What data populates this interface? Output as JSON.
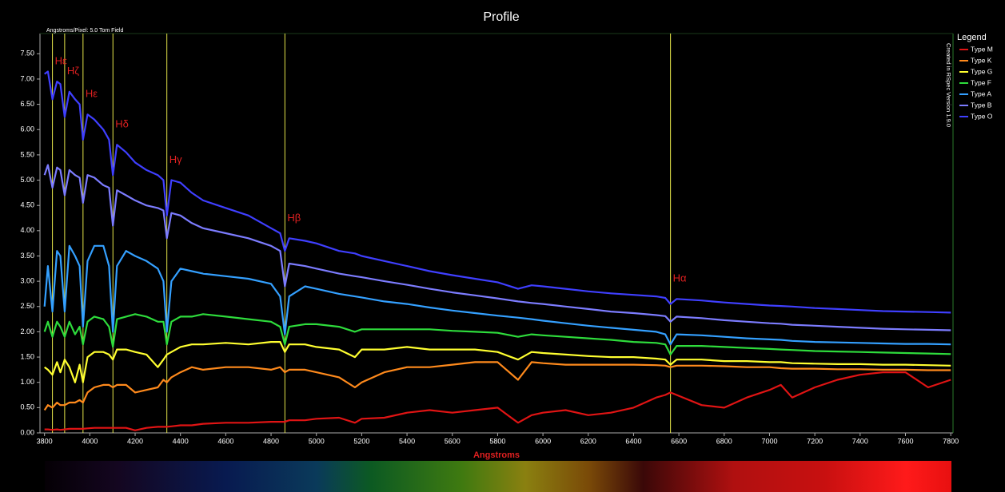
{
  "chart_data": {
    "type": "line",
    "title": "Profile",
    "subtitle": "Angstroms/Pixel: 5.0 Tom Field",
    "side_note": "Created in RSpec Version 1.9.0",
    "x_label": "Angstroms",
    "legend_title": "Legend",
    "legend": "right",
    "grid": false,
    "xlim": [
      3780,
      7810
    ],
    "ylim": [
      0,
      7.9
    ],
    "xticks": [
      3800,
      4000,
      4200,
      4400,
      4600,
      4800,
      5000,
      5200,
      5400,
      5600,
      5800,
      6000,
      6200,
      6400,
      6600,
      6800,
      7000,
      7200,
      7400,
      7600,
      7800
    ],
    "yticks": [
      {
        "value": 0,
        "label": "0.00"
      },
      {
        "value": 0.5,
        "label": "0.50"
      },
      {
        "value": 1,
        "label": "1.00"
      },
      {
        "value": 1.5,
        "label": "1.50"
      },
      {
        "value": 2,
        "label": "2.00"
      },
      {
        "value": 2.5,
        "label": "2.50"
      },
      {
        "value": 3,
        "label": "3.00"
      },
      {
        "value": 3.5,
        "label": "3.50"
      },
      {
        "value": 4,
        "label": "4.00"
      },
      {
        "value": 4.5,
        "label": "4.50"
      },
      {
        "value": 5,
        "label": "5.00"
      },
      {
        "value": 5.5,
        "label": "5.50"
      },
      {
        "value": 6,
        "label": "6.00"
      },
      {
        "value": 6.5,
        "label": "6.50"
      },
      {
        "value": 7,
        "label": "7.00"
      },
      {
        "value": 7.5,
        "label": "7.50"
      }
    ],
    "line_color": "#e6e64a",
    "label_color": "#e02020",
    "lines": [
      {
        "x": 3835,
        "label": "Hε"
      },
      {
        "x": 3889,
        "label": "Hζ"
      },
      {
        "x": 3970,
        "label": "Hε"
      },
      {
        "x": 4102,
        "label": "Hδ"
      },
      {
        "x": 4340,
        "label": "Hγ"
      },
      {
        "x": 4861,
        "label": "Hβ"
      },
      {
        "x": 6563,
        "label": "Hα"
      }
    ],
    "x": [
      3800,
      3815,
      3835,
      3855,
      3870,
      3889,
      3910,
      3935,
      3955,
      3970,
      3990,
      4020,
      4060,
      4085,
      4102,
      4120,
      4160,
      4200,
      4250,
      4300,
      4325,
      4340,
      4360,
      4400,
      4450,
      4500,
      4600,
      4700,
      4800,
      4840,
      4861,
      4880,
      4950,
      5000,
      5100,
      5170,
      5200,
      5300,
      5400,
      5500,
      5600,
      5700,
      5800,
      5890,
      5950,
      6000,
      6100,
      6200,
      6300,
      6400,
      6500,
      6540,
      6563,
      6590,
      6700,
      6800,
      6900,
      7000,
      7050,
      7100,
      7200,
      7300,
      7400,
      7500,
      7600,
      7700,
      7800
    ],
    "series": [
      {
        "name": "Type M",
        "color": "#e01414",
        "values": [
          0.07,
          0.07,
          0.06,
          0.07,
          0.06,
          0.07,
          0.08,
          0.08,
          0.08,
          0.08,
          0.09,
          0.1,
          0.1,
          0.1,
          0.1,
          0.1,
          0.1,
          0.05,
          0.1,
          0.12,
          0.12,
          0.12,
          0.13,
          0.15,
          0.15,
          0.18,
          0.2,
          0.2,
          0.22,
          0.22,
          0.22,
          0.25,
          0.25,
          0.28,
          0.3,
          0.2,
          0.28,
          0.3,
          0.4,
          0.45,
          0.4,
          0.45,
          0.5,
          0.2,
          0.35,
          0.4,
          0.45,
          0.35,
          0.4,
          0.5,
          0.7,
          0.75,
          0.8,
          0.75,
          0.55,
          0.5,
          0.7,
          0.85,
          0.95,
          0.7,
          0.9,
          1.05,
          1.15,
          1.2,
          1.2,
          0.9,
          1.05
        ]
      },
      {
        "name": "Type K",
        "color": "#ff8a1c",
        "values": [
          0.45,
          0.55,
          0.5,
          0.6,
          0.55,
          0.55,
          0.6,
          0.6,
          0.65,
          0.6,
          0.8,
          0.9,
          0.95,
          0.95,
          0.9,
          0.95,
          0.95,
          0.8,
          0.85,
          0.9,
          1.05,
          1.0,
          1.1,
          1.2,
          1.3,
          1.25,
          1.3,
          1.3,
          1.25,
          1.3,
          1.2,
          1.25,
          1.25,
          1.2,
          1.1,
          0.9,
          1.0,
          1.2,
          1.3,
          1.3,
          1.35,
          1.4,
          1.4,
          1.05,
          1.4,
          1.38,
          1.35,
          1.35,
          1.35,
          1.35,
          1.34,
          1.33,
          1.3,
          1.33,
          1.33,
          1.32,
          1.3,
          1.3,
          1.28,
          1.27,
          1.27,
          1.26,
          1.26,
          1.25,
          1.25,
          1.24,
          1.24
        ]
      },
      {
        "name": "Type G",
        "color": "#ffff30",
        "values": [
          1.3,
          1.25,
          1.15,
          1.4,
          1.2,
          1.45,
          1.3,
          1.0,
          1.35,
          1.0,
          1.5,
          1.6,
          1.6,
          1.55,
          1.45,
          1.65,
          1.65,
          1.6,
          1.55,
          1.3,
          1.45,
          1.55,
          1.6,
          1.7,
          1.75,
          1.75,
          1.78,
          1.75,
          1.8,
          1.8,
          1.6,
          1.75,
          1.75,
          1.7,
          1.65,
          1.5,
          1.65,
          1.65,
          1.7,
          1.65,
          1.65,
          1.65,
          1.6,
          1.45,
          1.6,
          1.58,
          1.55,
          1.52,
          1.5,
          1.5,
          1.47,
          1.45,
          1.35,
          1.45,
          1.45,
          1.42,
          1.42,
          1.4,
          1.4,
          1.38,
          1.37,
          1.36,
          1.36,
          1.35,
          1.35,
          1.34,
          1.33
        ]
      },
      {
        "name": "Type F",
        "color": "#2edc3c",
        "values": [
          2.0,
          2.2,
          1.9,
          2.2,
          2.1,
          1.9,
          2.2,
          1.95,
          2.1,
          1.75,
          2.2,
          2.3,
          2.25,
          2.1,
          1.7,
          2.25,
          2.3,
          2.35,
          2.3,
          2.2,
          2.2,
          1.75,
          2.2,
          2.3,
          2.3,
          2.35,
          2.3,
          2.25,
          2.2,
          2.1,
          1.75,
          2.1,
          2.15,
          2.15,
          2.1,
          2.0,
          2.05,
          2.05,
          2.05,
          2.05,
          2.02,
          2.0,
          1.98,
          1.9,
          1.95,
          1.93,
          1.9,
          1.87,
          1.84,
          1.8,
          1.78,
          1.75,
          1.55,
          1.72,
          1.72,
          1.7,
          1.68,
          1.66,
          1.65,
          1.64,
          1.62,
          1.61,
          1.6,
          1.59,
          1.58,
          1.57,
          1.56
        ]
      },
      {
        "name": "Type A",
        "color": "#34a0ff",
        "values": [
          2.5,
          3.3,
          2.4,
          3.6,
          3.5,
          2.4,
          3.7,
          3.5,
          3.3,
          2.1,
          3.4,
          3.7,
          3.7,
          3.3,
          2.0,
          3.3,
          3.6,
          3.5,
          3.4,
          3.25,
          3.0,
          2.0,
          3.0,
          3.25,
          3.2,
          3.15,
          3.1,
          3.05,
          2.95,
          2.7,
          1.95,
          2.7,
          2.9,
          2.85,
          2.75,
          2.7,
          2.68,
          2.6,
          2.55,
          2.48,
          2.42,
          2.37,
          2.32,
          2.28,
          2.25,
          2.22,
          2.17,
          2.12,
          2.08,
          2.04,
          2.0,
          1.95,
          1.75,
          1.95,
          1.93,
          1.9,
          1.87,
          1.85,
          1.84,
          1.82,
          1.8,
          1.79,
          1.78,
          1.77,
          1.76,
          1.76,
          1.75
        ]
      },
      {
        "name": "Type B",
        "color": "#7c7cff",
        "values": [
          5.1,
          5.3,
          4.85,
          5.25,
          5.2,
          4.7,
          5.2,
          5.1,
          5.05,
          4.55,
          5.1,
          5.05,
          4.9,
          4.85,
          4.1,
          4.8,
          4.7,
          4.6,
          4.5,
          4.45,
          4.4,
          3.85,
          4.35,
          4.3,
          4.15,
          4.05,
          3.95,
          3.85,
          3.7,
          3.6,
          2.9,
          3.35,
          3.3,
          3.25,
          3.15,
          3.1,
          3.08,
          3.0,
          2.93,
          2.85,
          2.78,
          2.72,
          2.66,
          2.6,
          2.57,
          2.55,
          2.5,
          2.45,
          2.4,
          2.37,
          2.33,
          2.31,
          2.2,
          2.3,
          2.27,
          2.23,
          2.2,
          2.17,
          2.16,
          2.14,
          2.12,
          2.1,
          2.08,
          2.06,
          2.05,
          2.04,
          2.03
        ]
      },
      {
        "name": "Type O",
        "color": "#3f3fff",
        "values": [
          7.1,
          7.15,
          6.6,
          6.95,
          6.9,
          6.25,
          6.75,
          6.6,
          6.5,
          5.8,
          6.3,
          6.2,
          6.0,
          5.8,
          5.1,
          5.7,
          5.55,
          5.35,
          5.2,
          5.1,
          5.0,
          4.3,
          5.0,
          4.95,
          4.75,
          4.6,
          4.45,
          4.3,
          4.05,
          3.95,
          3.6,
          3.85,
          3.8,
          3.75,
          3.6,
          3.55,
          3.5,
          3.4,
          3.3,
          3.2,
          3.12,
          3.05,
          2.98,
          2.85,
          2.92,
          2.9,
          2.85,
          2.8,
          2.76,
          2.73,
          2.7,
          2.67,
          2.55,
          2.65,
          2.62,
          2.58,
          2.55,
          2.52,
          2.51,
          2.5,
          2.47,
          2.45,
          2.43,
          2.41,
          2.4,
          2.39,
          2.38
        ]
      }
    ]
  }
}
